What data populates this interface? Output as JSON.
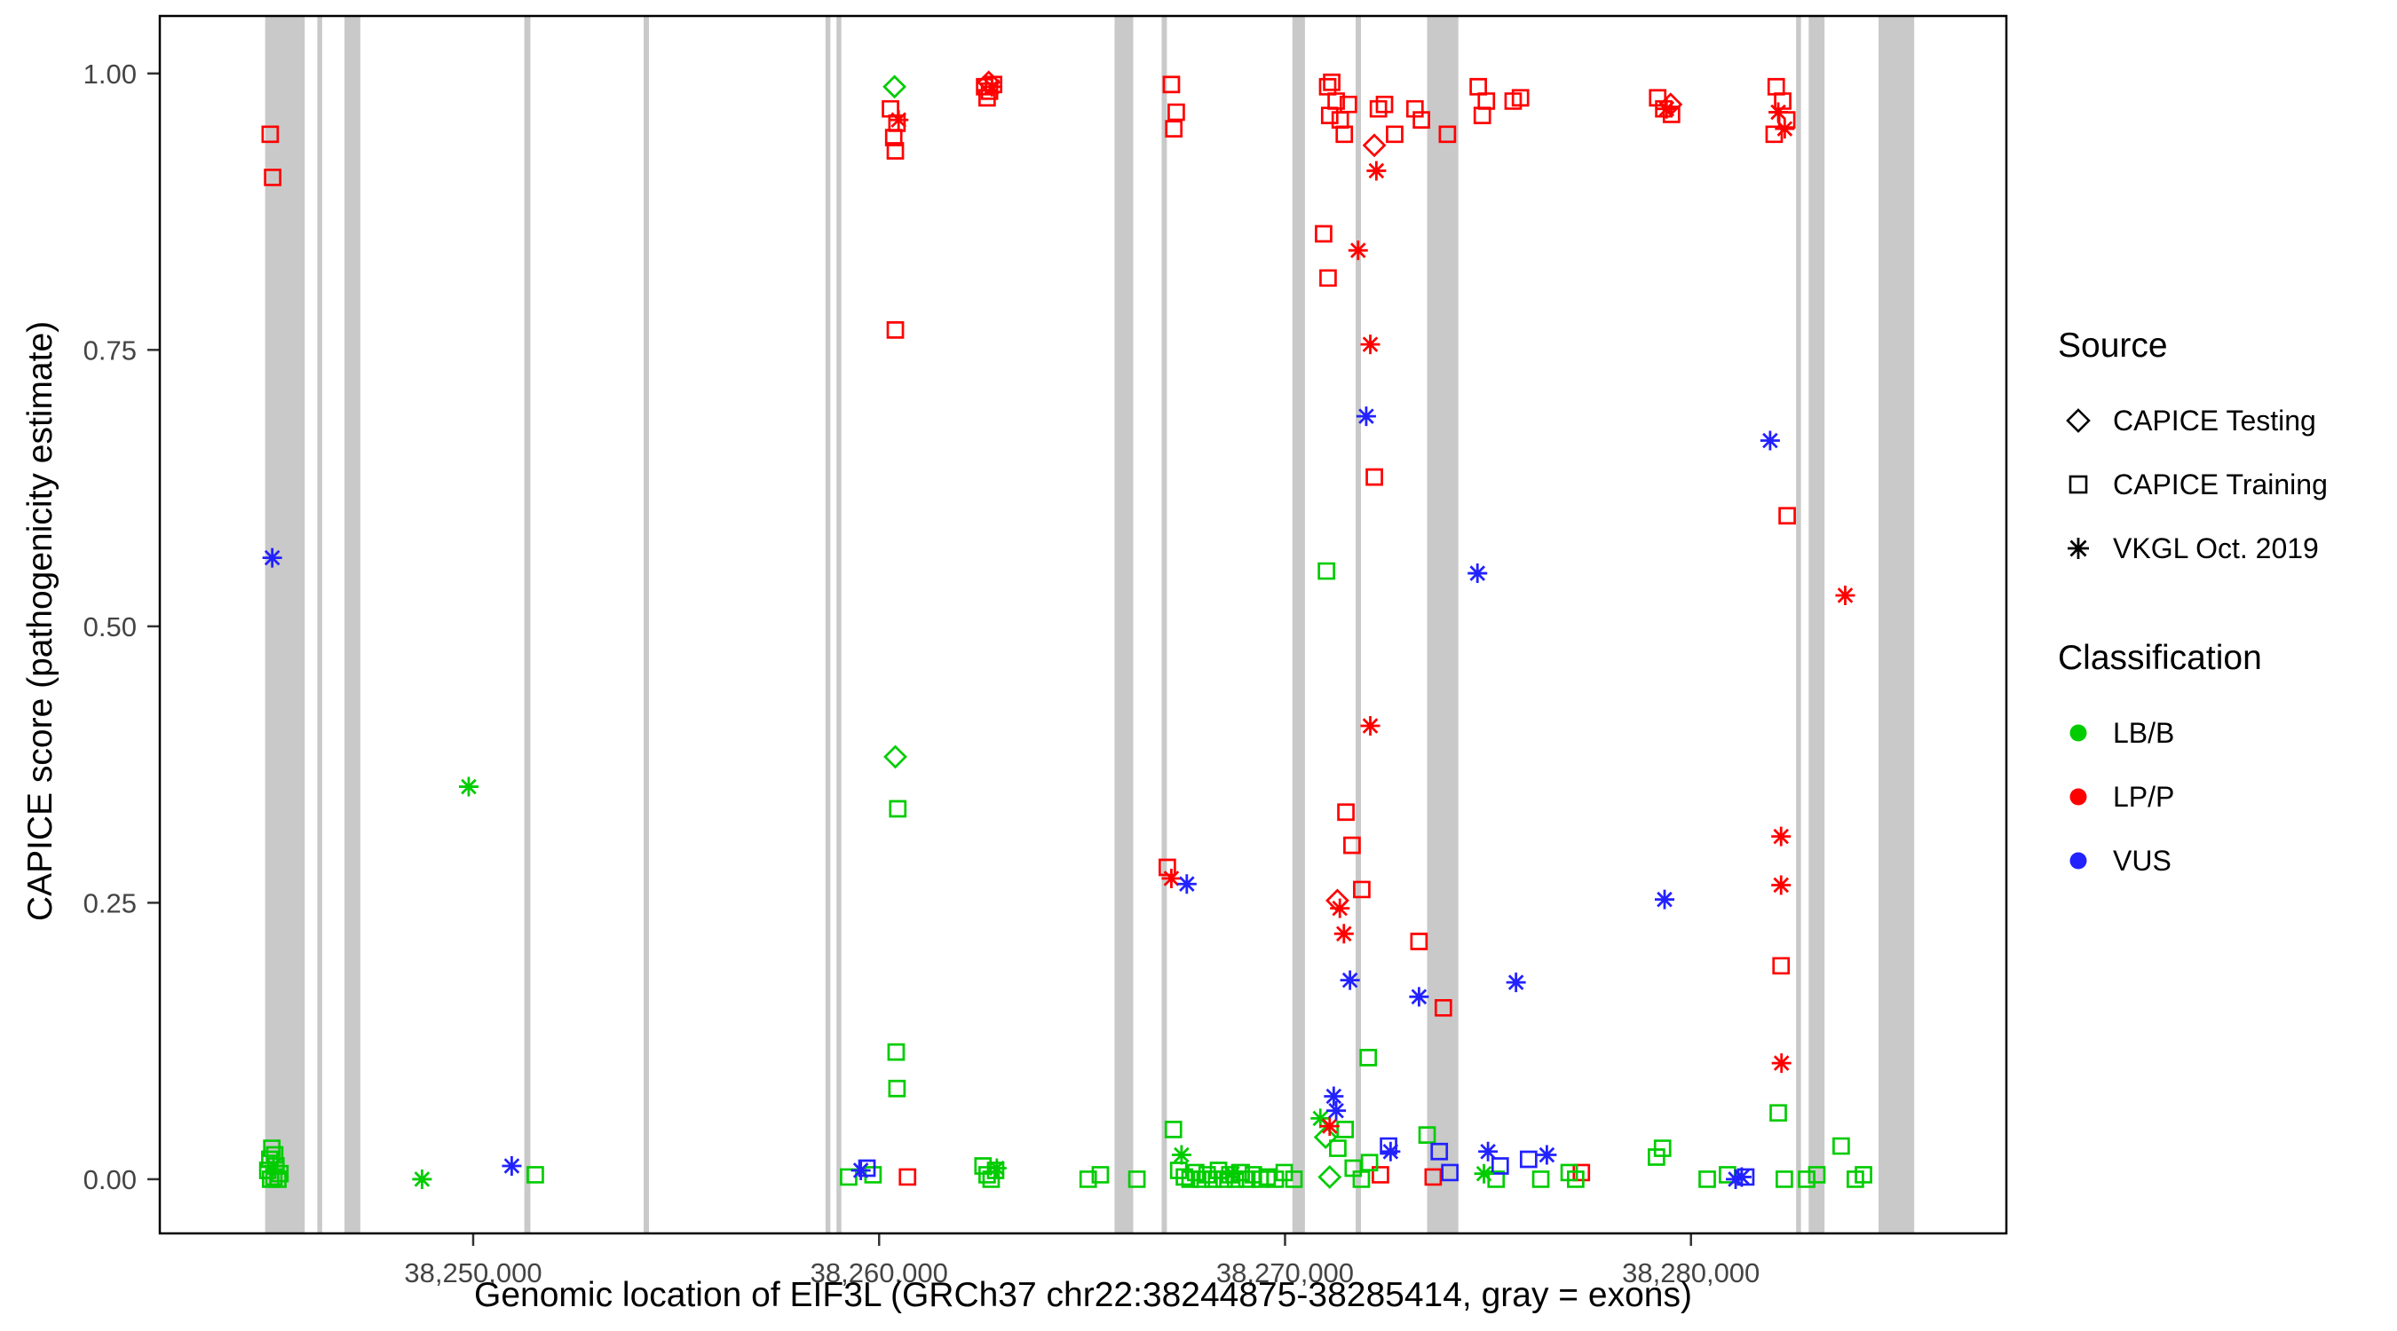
{
  "legend": {
    "source": {
      "title": "Source",
      "items": [
        {
          "label": "CAPICE Testing",
          "marker": "diamond"
        },
        {
          "label": "CAPICE Training",
          "marker": "square"
        },
        {
          "label": "VKGL Oct. 2019",
          "marker": "asterisk"
        }
      ]
    },
    "classification": {
      "title": "Classification",
      "items": [
        {
          "label": "LB/B",
          "color": "#00CC00"
        },
        {
          "label": "LP/P",
          "color": "#FF0000"
        },
        {
          "label": "VUS",
          "color": "#2222FF"
        }
      ]
    }
  },
  "chart_data": {
    "type": "scatter",
    "title": "",
    "xlabel": "Genomic location of EIF3L (GRCh37 chr22:38244875-38285414, gray = exons)",
    "ylabel": "CAPICE score (pathogenicity estimate)",
    "axes": {
      "x": {
        "min": 38242280,
        "max": 38287770,
        "ticks": [
          {
            "value": 38250000,
            "label": "38,250,000"
          },
          {
            "value": 38260000,
            "label": "38,260,000"
          },
          {
            "value": 38270000,
            "label": "38,270,000"
          },
          {
            "value": 38280000,
            "label": "38,280,000"
          }
        ]
      },
      "y": {
        "min": -0.049,
        "max": 1.052,
        "ticks": [
          {
            "value": 0,
            "label": "0.00"
          },
          {
            "value": 0.25,
            "label": "0.25"
          },
          {
            "value": 0.5,
            "label": "0.50"
          },
          {
            "value": 0.75,
            "label": "0.75"
          },
          {
            "value": 1,
            "label": "1.00"
          }
        ]
      }
    },
    "exon_color": "#C9C9C9",
    "exons": [
      [
        38244875,
        38245850
      ],
      [
        38246160,
        38246280
      ],
      [
        38246830,
        38247220
      ],
      [
        38251260,
        38251410
      ],
      [
        38254200,
        38254330
      ],
      [
        38258680,
        38258800
      ],
      [
        38258950,
        38259070
      ],
      [
        38265800,
        38266260
      ],
      [
        38266960,
        38267090
      ],
      [
        38270180,
        38270490
      ],
      [
        38271740,
        38271870
      ],
      [
        38273500,
        38274270
      ],
      [
        38282590,
        38282710
      ],
      [
        38282900,
        38283290
      ],
      [
        38284620,
        38285500
      ]
    ],
    "classification_colors": {
      "LB/B": "#00CC00",
      "LP/P": "#FF0000",
      "VUS": "#2222FF"
    },
    "series": [
      {
        "name": "CAPICE Testing",
        "marker": "diamond",
        "points": [
          [
            38260380,
            0.988,
            "LB/B"
          ],
          [
            38260400,
            0.382,
            "LB/B"
          ],
          [
            38271000,
            0.038,
            "LB/B"
          ],
          [
            38271100,
            0.002,
            "LB/B"
          ],
          [
            38262700,
            0.992,
            "LP/P"
          ],
          [
            38272200,
            0.935,
            "LP/P"
          ],
          [
            38271290,
            0.252,
            "LP/P"
          ],
          [
            38279500,
            0.972,
            "LP/P"
          ]
        ]
      },
      {
        "name": "CAPICE Training",
        "marker": "square",
        "points": [
          [
            38245000,
            0.945,
            "LP/P"
          ],
          [
            38245060,
            0.906,
            "LP/P"
          ],
          [
            38260280,
            0.968,
            "LP/P"
          ],
          [
            38260440,
            0.955,
            "LP/P"
          ],
          [
            38260360,
            0.942,
            "LP/P"
          ],
          [
            38260400,
            0.93,
            "LP/P"
          ],
          [
            38260400,
            0.768,
            "LP/P"
          ],
          [
            38262600,
            0.988,
            "LP/P"
          ],
          [
            38262720,
            0.984,
            "LP/P"
          ],
          [
            38262660,
            0.978,
            "LP/P"
          ],
          [
            38262820,
            0.99,
            "LP/P"
          ],
          [
            38267200,
            0.99,
            "LP/P"
          ],
          [
            38267320,
            0.965,
            "LP/P"
          ],
          [
            38267260,
            0.95,
            "LP/P"
          ],
          [
            38267100,
            0.282,
            "LP/P"
          ],
          [
            38271050,
            0.988,
            "LP/P"
          ],
          [
            38271150,
            0.992,
            "LP/P"
          ],
          [
            38271260,
            0.975,
            "LP/P"
          ],
          [
            38271100,
            0.962,
            "LP/P"
          ],
          [
            38271360,
            0.958,
            "LP/P"
          ],
          [
            38271460,
            0.945,
            "LP/P"
          ],
          [
            38271560,
            0.972,
            "LP/P"
          ],
          [
            38272300,
            0.968,
            "LP/P"
          ],
          [
            38272450,
            0.972,
            "LP/P"
          ],
          [
            38272700,
            0.945,
            "LP/P"
          ],
          [
            38270950,
            0.855,
            "LP/P"
          ],
          [
            38271060,
            0.815,
            "LP/P"
          ],
          [
            38272200,
            0.635,
            "LP/P"
          ],
          [
            38271500,
            0.332,
            "LP/P"
          ],
          [
            38271650,
            0.302,
            "LP/P"
          ],
          [
            38271890,
            0.262,
            "LP/P"
          ],
          [
            38273300,
            0.215,
            "LP/P"
          ],
          [
            38273900,
            0.155,
            "LP/P"
          ],
          [
            38273200,
            0.968,
            "LP/P"
          ],
          [
            38273360,
            0.958,
            "LP/P"
          ],
          [
            38274000,
            0.945,
            "LP/P"
          ],
          [
            38274760,
            0.988,
            "LP/P"
          ],
          [
            38274860,
            0.962,
            "LP/P"
          ],
          [
            38274960,
            0.975,
            "LP/P"
          ],
          [
            38275620,
            0.975,
            "LP/P"
          ],
          [
            38275800,
            0.978,
            "LP/P"
          ],
          [
            38279180,
            0.978,
            "LP/P"
          ],
          [
            38279330,
            0.968,
            "LP/P"
          ],
          [
            38279520,
            0.963,
            "LP/P"
          ],
          [
            38282100,
            0.988,
            "LP/P"
          ],
          [
            38282260,
            0.975,
            "LP/P"
          ],
          [
            38282050,
            0.945,
            "LP/P"
          ],
          [
            38282360,
            0.958,
            "LP/P"
          ],
          [
            38282370,
            0.6,
            "LP/P"
          ],
          [
            38282220,
            0.193,
            "LP/P"
          ],
          [
            38260700,
            0.002,
            "LP/P"
          ],
          [
            38272350,
            0.004,
            "LP/P"
          ],
          [
            38277300,
            0.006,
            "LP/P"
          ],
          [
            38273650,
            0.002,
            "LP/P"
          ],
          [
            38244940,
            0.008,
            "LB/B"
          ],
          [
            38244990,
            0.018,
            "LB/B"
          ],
          [
            38245040,
            0.028,
            "LB/B"
          ],
          [
            38245090,
            0.002,
            "LB/B"
          ],
          [
            38245140,
            0.012,
            "LB/B"
          ],
          [
            38245190,
            0.0,
            "LB/B"
          ],
          [
            38245240,
            0.005,
            "LB/B"
          ],
          [
            38245010,
            0.0,
            "LB/B"
          ],
          [
            38245110,
            0.022,
            "LB/B"
          ],
          [
            38251530,
            0.004,
            "LB/B"
          ],
          [
            38259250,
            0.002,
            "LB/B"
          ],
          [
            38259850,
            0.004,
            "LB/B"
          ],
          [
            38260420,
            0.115,
            "LB/B"
          ],
          [
            38260440,
            0.082,
            "LB/B"
          ],
          [
            38260460,
            0.335,
            "LB/B"
          ],
          [
            38262560,
            0.012,
            "LB/B"
          ],
          [
            38262660,
            0.004,
            "LB/B"
          ],
          [
            38262760,
            0.0,
            "LB/B"
          ],
          [
            38262870,
            0.008,
            "LB/B"
          ],
          [
            38265150,
            0.0,
            "LB/B"
          ],
          [
            38265450,
            0.004,
            "LB/B"
          ],
          [
            38266350,
            0.0,
            "LB/B"
          ],
          [
            38267250,
            0.045,
            "LB/B"
          ],
          [
            38267380,
            0.008,
            "LB/B"
          ],
          [
            38267520,
            0.002,
            "LB/B"
          ],
          [
            38267660,
            0.0,
            "LB/B"
          ],
          [
            38267800,
            0.006,
            "LB/B"
          ],
          [
            38267940,
            0.0,
            "LB/B"
          ],
          [
            38268080,
            0.004,
            "LB/B"
          ],
          [
            38268220,
            0.0,
            "LB/B"
          ],
          [
            38268360,
            0.008,
            "LB/B"
          ],
          [
            38268500,
            0.0,
            "LB/B"
          ],
          [
            38268640,
            0.004,
            "LB/B"
          ],
          [
            38268780,
            0.0,
            "LB/B"
          ],
          [
            38268920,
            0.006,
            "LB/B"
          ],
          [
            38269060,
            0.0,
            "LB/B"
          ],
          [
            38269220,
            0.004,
            "LB/B"
          ],
          [
            38269380,
            0.0,
            "LB/B"
          ],
          [
            38269560,
            0.002,
            "LB/B"
          ],
          [
            38269760,
            0.0,
            "LB/B"
          ],
          [
            38269980,
            0.006,
            "LB/B"
          ],
          [
            38270220,
            0.0,
            "LB/B"
          ],
          [
            38271020,
            0.55,
            "LB/B"
          ],
          [
            38272050,
            0.11,
            "LB/B"
          ],
          [
            38271300,
            0.028,
            "LB/B"
          ],
          [
            38271480,
            0.045,
            "LB/B"
          ],
          [
            38271680,
            0.01,
            "LB/B"
          ],
          [
            38271880,
            0.0,
            "LB/B"
          ],
          [
            38272080,
            0.015,
            "LB/B"
          ],
          [
            38273500,
            0.04,
            "LB/B"
          ],
          [
            38275200,
            0.0,
            "LB/B"
          ],
          [
            38276300,
            0.0,
            "LB/B"
          ],
          [
            38277000,
            0.006,
            "LB/B"
          ],
          [
            38277160,
            0.0,
            "LB/B"
          ],
          [
            38279150,
            0.02,
            "LB/B"
          ],
          [
            38279300,
            0.028,
            "LB/B"
          ],
          [
            38280400,
            0.0,
            "LB/B"
          ],
          [
            38280900,
            0.004,
            "LB/B"
          ],
          [
            38282150,
            0.06,
            "LB/B"
          ],
          [
            38282300,
            0.0,
            "LB/B"
          ],
          [
            38282850,
            0.0,
            "LB/B"
          ],
          [
            38283100,
            0.004,
            "LB/B"
          ],
          [
            38283700,
            0.03,
            "LB/B"
          ],
          [
            38284050,
            0.0,
            "LB/B"
          ],
          [
            38284250,
            0.004,
            "LB/B"
          ],
          [
            38259700,
            0.01,
            "VUS"
          ],
          [
            38272550,
            0.03,
            "VUS"
          ],
          [
            38273800,
            0.025,
            "VUS"
          ],
          [
            38274060,
            0.006,
            "VUS"
          ],
          [
            38275300,
            0.012,
            "VUS"
          ],
          [
            38276000,
            0.018,
            "VUS"
          ],
          [
            38281350,
            0.002,
            "VUS"
          ]
        ]
      },
      {
        "name": "VKGL Oct. 2019",
        "marker": "asterisk",
        "points": [
          [
            38245080,
            0.012,
            "LB/B"
          ],
          [
            38248740,
            0.0,
            "LB/B"
          ],
          [
            38249890,
            0.355,
            "LB/B"
          ],
          [
            38262900,
            0.01,
            "LB/B"
          ],
          [
            38267450,
            0.022,
            "LB/B"
          ],
          [
            38268700,
            0.005,
            "LB/B"
          ],
          [
            38270870,
            0.055,
            "LB/B"
          ],
          [
            38274900,
            0.005,
            "LB/B"
          ],
          [
            38260480,
            0.958,
            "LP/P"
          ],
          [
            38262780,
            0.988,
            "LP/P"
          ],
          [
            38267200,
            0.272,
            "LP/P"
          ],
          [
            38272250,
            0.912,
            "LP/P"
          ],
          [
            38271800,
            0.84,
            "LP/P"
          ],
          [
            38272100,
            0.755,
            "LP/P"
          ],
          [
            38272100,
            0.41,
            "LP/P"
          ],
          [
            38271350,
            0.245,
            "LP/P"
          ],
          [
            38271450,
            0.222,
            "LP/P"
          ],
          [
            38271100,
            0.048,
            "LP/P"
          ],
          [
            38279400,
            0.968,
            "LP/P"
          ],
          [
            38282150,
            0.965,
            "LP/P"
          ],
          [
            38282310,
            0.95,
            "LP/P"
          ],
          [
            38282220,
            0.31,
            "LP/P"
          ],
          [
            38282220,
            0.266,
            "LP/P"
          ],
          [
            38282230,
            0.105,
            "LP/P"
          ],
          [
            38283800,
            0.528,
            "LP/P"
          ],
          [
            38245050,
            0.562,
            "VUS"
          ],
          [
            38250950,
            0.012,
            "VUS"
          ],
          [
            38259550,
            0.008,
            "VUS"
          ],
          [
            38267580,
            0.267,
            "VUS"
          ],
          [
            38271200,
            0.075,
            "VUS"
          ],
          [
            38271260,
            0.062,
            "VUS"
          ],
          [
            38271600,
            0.18,
            "VUS"
          ],
          [
            38272000,
            0.69,
            "VUS"
          ],
          [
            38273300,
            0.165,
            "VUS"
          ],
          [
            38272600,
            0.025,
            "VUS"
          ],
          [
            38274740,
            0.548,
            "VUS"
          ],
          [
            38275000,
            0.025,
            "VUS"
          ],
          [
            38275690,
            0.178,
            "VUS"
          ],
          [
            38276450,
            0.022,
            "VUS"
          ],
          [
            38279350,
            0.253,
            "VUS"
          ],
          [
            38281100,
            0.0,
            "VUS"
          ],
          [
            38281250,
            0.002,
            "VUS"
          ],
          [
            38281950,
            0.668,
            "VUS"
          ]
        ]
      }
    ]
  }
}
